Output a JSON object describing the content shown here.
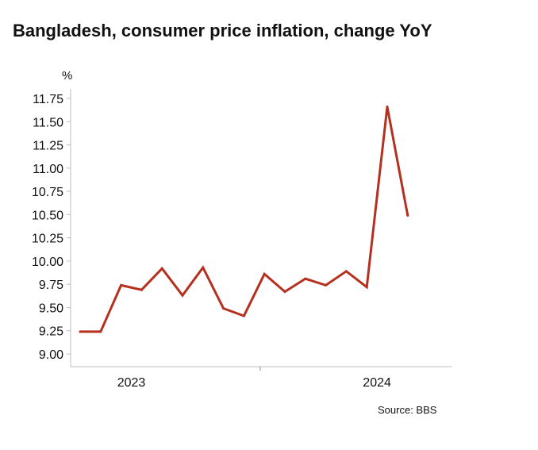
{
  "chart_data": {
    "type": "line",
    "title": "Bangladesh, consumer price inflation, change YoY",
    "y_unit": "%",
    "source": "Source: BBS",
    "ylim": [
      9.0,
      11.75
    ],
    "y_ticks": [
      "9.00",
      "9.25",
      "9.50",
      "9.75",
      "10.00",
      "10.25",
      "10.50",
      "10.75",
      "11.00",
      "11.25",
      "11.50",
      "11.75"
    ],
    "x_ticks": [
      {
        "label": "2023",
        "index": 2.5
      },
      {
        "label": "2024",
        "index": 14.5
      }
    ],
    "grid": false,
    "legend": "none",
    "series": [
      {
        "color": "#b5301f",
        "values": [
          9.24,
          9.24,
          9.74,
          9.69,
          9.92,
          9.63,
          9.93,
          9.49,
          9.41,
          9.86,
          9.67,
          9.81,
          9.74,
          9.89,
          9.72,
          11.66,
          10.49
        ]
      }
    ]
  }
}
